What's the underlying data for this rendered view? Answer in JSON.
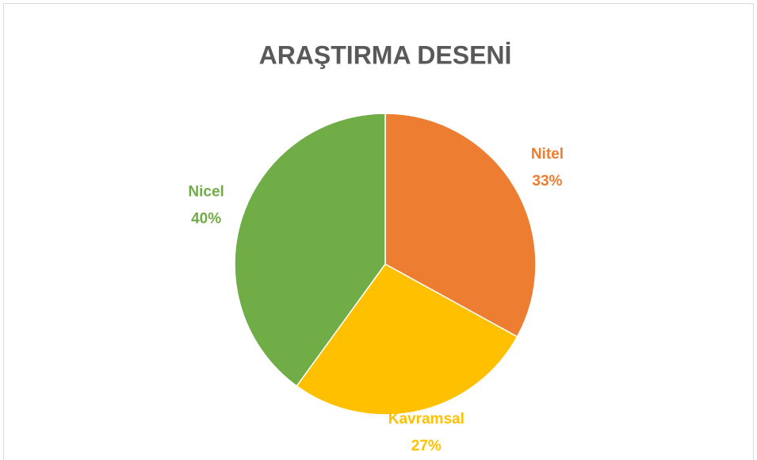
{
  "chart_data": {
    "type": "pie",
    "title": "ARAŞTIRMA DESENİ",
    "categories": [
      "Nitel",
      "Kavramsal",
      "Nicel"
    ],
    "values": [
      33,
      27,
      40
    ],
    "value_labels": [
      "33%",
      "27%",
      "40%"
    ],
    "colors": [
      "#ED7D31",
      "#FFC000",
      "#70AD47"
    ]
  }
}
